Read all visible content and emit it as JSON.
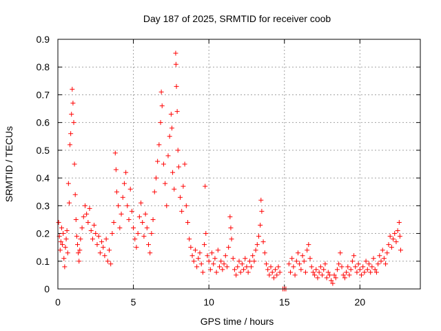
{
  "chart_data": {
    "type": "scatter",
    "title": "Day 187 of 2025, SRMTID for receiver coob",
    "xlabel": "GPS time / hours",
    "ylabel": "SRMTID / TECUs",
    "xlim": [
      0,
      24
    ],
    "ylim": [
      0,
      0.9
    ],
    "xticks": [
      0,
      5,
      10,
      15,
      20
    ],
    "yticks": [
      0,
      0.1,
      0.2,
      0.3,
      0.4,
      0.5,
      0.6,
      0.7,
      0.8,
      0.9
    ],
    "grid": true,
    "marker": "+",
    "series": [
      {
        "name": "SRMTID",
        "color": "#ff0000",
        "points": [
          [
            0.05,
            0.24
          ],
          [
            0.1,
            0.19
          ],
          [
            0.15,
            0.14
          ],
          [
            0.2,
            0.17
          ],
          [
            0.25,
            0.22
          ],
          [
            0.3,
            0.16
          ],
          [
            0.35,
            0.2
          ],
          [
            0.4,
            0.11
          ],
          [
            0.45,
            0.08
          ],
          [
            0.5,
            0.15
          ],
          [
            0.55,
            0.18
          ],
          [
            0.6,
            0.21
          ],
          [
            0.65,
            0.13
          ],
          [
            0.7,
            0.38
          ],
          [
            0.75,
            0.31
          ],
          [
            0.8,
            0.52
          ],
          [
            0.85,
            0.56
          ],
          [
            0.9,
            0.63
          ],
          [
            0.95,
            0.72
          ],
          [
            1.0,
            0.67
          ],
          [
            1.05,
            0.6
          ],
          [
            1.1,
            0.45
          ],
          [
            1.15,
            0.34
          ],
          [
            1.2,
            0.25
          ],
          [
            1.25,
            0.19
          ],
          [
            1.3,
            0.16
          ],
          [
            1.35,
            0.13
          ],
          [
            1.4,
            0.1
          ],
          [
            1.45,
            0.14
          ],
          [
            1.5,
            0.18
          ],
          [
            1.6,
            0.22
          ],
          [
            1.7,
            0.26
          ],
          [
            1.8,
            0.3
          ],
          [
            1.9,
            0.27
          ],
          [
            2.0,
            0.24
          ],
          [
            2.1,
            0.29
          ],
          [
            2.2,
            0.21
          ],
          [
            2.3,
            0.18
          ],
          [
            2.4,
            0.23
          ],
          [
            2.5,
            0.2
          ],
          [
            2.6,
            0.16
          ],
          [
            2.7,
            0.19
          ],
          [
            2.8,
            0.13
          ],
          [
            2.9,
            0.17
          ],
          [
            3.0,
            0.15
          ],
          [
            3.1,
            0.12
          ],
          [
            3.2,
            0.18
          ],
          [
            3.3,
            0.1
          ],
          [
            3.4,
            0.14
          ],
          [
            3.5,
            0.09
          ],
          [
            3.6,
            0.2
          ],
          [
            3.7,
            0.24
          ],
          [
            3.8,
            0.49
          ],
          [
            3.85,
            0.43
          ],
          [
            3.9,
            0.35
          ],
          [
            4.0,
            0.3
          ],
          [
            4.1,
            0.22
          ],
          [
            4.2,
            0.27
          ],
          [
            4.3,
            0.33
          ],
          [
            4.4,
            0.38
          ],
          [
            4.5,
            0.42
          ],
          [
            4.6,
            0.3
          ],
          [
            4.7,
            0.25
          ],
          [
            4.8,
            0.36
          ],
          [
            4.9,
            0.28
          ],
          [
            5.0,
            0.22
          ],
          [
            5.1,
            0.18
          ],
          [
            5.2,
            0.15
          ],
          [
            5.3,
            0.2
          ],
          [
            5.4,
            0.26
          ],
          [
            5.5,
            0.31
          ],
          [
            5.6,
            0.24
          ],
          [
            5.7,
            0.19
          ],
          [
            5.8,
            0.27
          ],
          [
            5.9,
            0.22
          ],
          [
            6.0,
            0.16
          ],
          [
            6.1,
            0.13
          ],
          [
            6.2,
            0.2
          ],
          [
            6.3,
            0.25
          ],
          [
            6.4,
            0.35
          ],
          [
            6.5,
            0.4
          ],
          [
            6.6,
            0.46
          ],
          [
            6.7,
            0.52
          ],
          [
            6.8,
            0.6
          ],
          [
            6.85,
            0.71
          ],
          [
            6.9,
            0.66
          ],
          [
            7.0,
            0.45
          ],
          [
            7.1,
            0.38
          ],
          [
            7.2,
            0.3
          ],
          [
            7.3,
            0.48
          ],
          [
            7.4,
            0.55
          ],
          [
            7.5,
            0.63
          ],
          [
            7.55,
            0.58
          ],
          [
            7.6,
            0.42
          ],
          [
            7.7,
            0.36
          ],
          [
            7.8,
            0.85
          ],
          [
            7.82,
            0.81
          ],
          [
            7.85,
            0.73
          ],
          [
            7.9,
            0.64
          ],
          [
            7.95,
            0.5
          ],
          [
            8.0,
            0.44
          ],
          [
            8.1,
            0.33
          ],
          [
            8.2,
            0.28
          ],
          [
            8.3,
            0.37
          ],
          [
            8.4,
            0.45
          ],
          [
            8.5,
            0.3
          ],
          [
            8.6,
            0.24
          ],
          [
            8.7,
            0.18
          ],
          [
            8.8,
            0.15
          ],
          [
            8.9,
            0.12
          ],
          [
            9.0,
            0.1
          ],
          [
            9.1,
            0.14
          ],
          [
            9.2,
            0.08
          ],
          [
            9.3,
            0.11
          ],
          [
            9.4,
            0.13
          ],
          [
            9.5,
            0.09
          ],
          [
            9.6,
            0.06
          ],
          [
            9.7,
            0.16
          ],
          [
            9.75,
            0.37
          ],
          [
            9.8,
            0.2
          ],
          [
            9.9,
            0.12
          ],
          [
            10.0,
            0.1
          ],
          [
            10.1,
            0.07
          ],
          [
            10.2,
            0.13
          ],
          [
            10.3,
            0.09
          ],
          [
            10.4,
            0.11
          ],
          [
            10.5,
            0.06
          ],
          [
            10.6,
            0.14
          ],
          [
            10.7,
            0.08
          ],
          [
            10.8,
            0.1
          ],
          [
            10.9,
            0.07
          ],
          [
            11.0,
            0.09
          ],
          [
            11.1,
            0.12
          ],
          [
            11.2,
            0.08
          ],
          [
            11.3,
            0.15
          ],
          [
            11.4,
            0.26
          ],
          [
            11.45,
            0.22
          ],
          [
            11.5,
            0.18
          ],
          [
            11.6,
            0.11
          ],
          [
            11.7,
            0.07
          ],
          [
            11.8,
            0.05
          ],
          [
            11.9,
            0.08
          ],
          [
            12.0,
            0.1
          ],
          [
            12.1,
            0.06
          ],
          [
            12.2,
            0.09
          ],
          [
            12.3,
            0.07
          ],
          [
            12.4,
            0.11
          ],
          [
            12.5,
            0.08
          ],
          [
            12.6,
            0.06
          ],
          [
            12.7,
            0.1
          ],
          [
            12.8,
            0.08
          ],
          [
            12.9,
            0.12
          ],
          [
            13.0,
            0.1
          ],
          [
            13.1,
            0.14
          ],
          [
            13.2,
            0.16
          ],
          [
            13.3,
            0.19
          ],
          [
            13.4,
            0.23
          ],
          [
            13.45,
            0.32
          ],
          [
            13.5,
            0.28
          ],
          [
            13.6,
            0.17
          ],
          [
            13.7,
            0.13
          ],
          [
            13.8,
            0.09
          ],
          [
            13.9,
            0.07
          ],
          [
            14.0,
            0.05
          ],
          [
            14.1,
            0.08
          ],
          [
            14.2,
            0.06
          ],
          [
            14.3,
            0.04
          ],
          [
            14.4,
            0.07
          ],
          [
            14.5,
            0.05
          ],
          [
            14.6,
            0.08
          ],
          [
            14.7,
            0.06
          ],
          [
            14.9,
            0.0
          ],
          [
            15.0,
            0.0
          ],
          [
            15.1,
            0.0
          ],
          [
            15.3,
            0.09
          ],
          [
            15.4,
            0.06
          ],
          [
            15.5,
            0.11
          ],
          [
            15.6,
            0.08
          ],
          [
            15.7,
            0.05
          ],
          [
            15.8,
            0.1
          ],
          [
            15.9,
            0.13
          ],
          [
            16.0,
            0.09
          ],
          [
            16.1,
            0.07
          ],
          [
            16.2,
            0.12
          ],
          [
            16.3,
            0.1
          ],
          [
            16.4,
            0.06
          ],
          [
            16.5,
            0.14
          ],
          [
            16.6,
            0.16
          ],
          [
            16.7,
            0.11
          ],
          [
            16.8,
            0.08
          ],
          [
            16.9,
            0.06
          ],
          [
            17.0,
            0.05
          ],
          [
            17.1,
            0.07
          ],
          [
            17.2,
            0.04
          ],
          [
            17.3,
            0.06
          ],
          [
            17.4,
            0.08
          ],
          [
            17.5,
            0.05
          ],
          [
            17.6,
            0.07
          ],
          [
            17.7,
            0.09
          ],
          [
            17.8,
            0.04
          ],
          [
            17.9,
            0.06
          ],
          [
            18.0,
            0.05
          ],
          [
            18.1,
            0.03
          ],
          [
            18.2,
            0.02
          ],
          [
            18.3,
            0.05
          ],
          [
            18.4,
            0.04
          ],
          [
            18.5,
            0.07
          ],
          [
            18.6,
            0.09
          ],
          [
            18.7,
            0.13
          ],
          [
            18.8,
            0.08
          ],
          [
            18.9,
            0.05
          ],
          [
            19.0,
            0.04
          ],
          [
            19.1,
            0.06
          ],
          [
            19.2,
            0.08
          ],
          [
            19.3,
            0.05
          ],
          [
            19.4,
            0.07
          ],
          [
            19.5,
            0.1
          ],
          [
            19.6,
            0.12
          ],
          [
            19.7,
            0.08
          ],
          [
            19.8,
            0.06
          ],
          [
            19.9,
            0.09
          ],
          [
            20.0,
            0.07
          ],
          [
            20.1,
            0.05
          ],
          [
            20.2,
            0.08
          ],
          [
            20.3,
            0.06
          ],
          [
            20.4,
            0.1
          ],
          [
            20.5,
            0.07
          ],
          [
            20.6,
            0.09
          ],
          [
            20.7,
            0.06
          ],
          [
            20.8,
            0.08
          ],
          [
            20.9,
            0.11
          ],
          [
            21.0,
            0.07
          ],
          [
            21.1,
            0.06
          ],
          [
            21.2,
            0.09
          ],
          [
            21.3,
            0.12
          ],
          [
            21.4,
            0.1
          ],
          [
            21.5,
            0.14
          ],
          [
            21.6,
            0.11
          ],
          [
            21.7,
            0.09
          ],
          [
            21.8,
            0.13
          ],
          [
            21.9,
            0.16
          ],
          [
            22.0,
            0.19
          ],
          [
            22.1,
            0.15
          ],
          [
            22.2,
            0.18
          ],
          [
            22.3,
            0.2
          ],
          [
            22.4,
            0.17
          ],
          [
            22.5,
            0.21
          ],
          [
            22.6,
            0.24
          ],
          [
            22.65,
            0.19
          ],
          [
            22.7,
            0.14
          ]
        ]
      }
    ]
  }
}
